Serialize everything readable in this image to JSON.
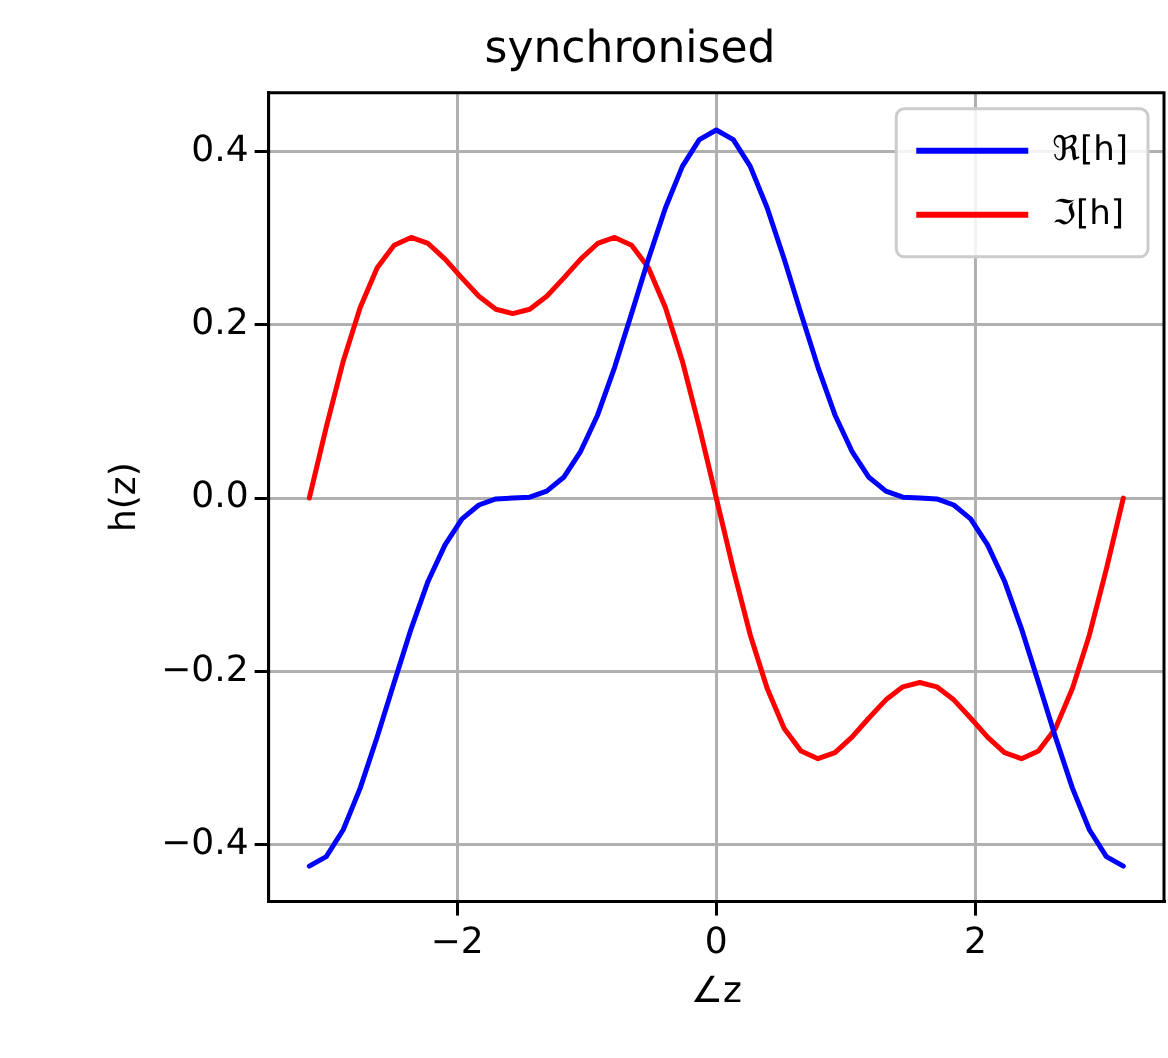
{
  "chart_data": {
    "type": "line",
    "title": "synchronised",
    "xlabel": "∠z",
    "ylabel": "h(z)",
    "x": [
      -3.142,
      -3.011,
      -2.88,
      -2.749,
      -2.618,
      -2.487,
      -2.356,
      -2.225,
      -2.094,
      -1.963,
      -1.833,
      -1.702,
      -1.571,
      -1.44,
      -1.309,
      -1.178,
      -1.047,
      -0.916,
      -0.785,
      -0.654,
      -0.524,
      -0.393,
      -0.262,
      -0.131,
      0,
      0.131,
      0.262,
      0.393,
      0.524,
      0.654,
      0.785,
      0.916,
      1.047,
      1.178,
      1.309,
      1.44,
      1.571,
      1.702,
      1.833,
      1.963,
      2.094,
      2.225,
      2.356,
      2.487,
      2.618,
      2.749,
      2.88,
      3.011,
      3.142
    ],
    "series": [
      {
        "name": "ℜ[h]",
        "color": "#0000ff",
        "values": [
          -0.425,
          -0.414,
          -0.383,
          -0.335,
          -0.276,
          -0.213,
          -0.151,
          -0.096,
          -0.054,
          -0.024,
          -0.008,
          -0.001,
          0,
          0.001,
          0.008,
          0.024,
          0.054,
          0.096,
          0.151,
          0.213,
          0.276,
          0.335,
          0.383,
          0.414,
          0.425,
          0.414,
          0.383,
          0.335,
          0.276,
          0.213,
          0.151,
          0.096,
          0.054,
          0.024,
          0.008,
          0.001,
          0,
          -0.001,
          -0.008,
          -0.024,
          -0.054,
          -0.096,
          -0.151,
          -0.213,
          -0.276,
          -0.335,
          -0.383,
          -0.414,
          -0.425
        ]
      },
      {
        "name": "ℑ[h]",
        "color": "#ff0000",
        "values": [
          0,
          0.082,
          0.158,
          0.22,
          0.266,
          0.292,
          0.301,
          0.294,
          0.276,
          0.254,
          0.233,
          0.218,
          0.213,
          0.218,
          0.233,
          0.254,
          0.276,
          0.294,
          0.301,
          0.292,
          0.266,
          0.22,
          0.158,
          0.082,
          0,
          -0.082,
          -0.158,
          -0.22,
          -0.266,
          -0.292,
          -0.301,
          -0.294,
          -0.276,
          -0.254,
          -0.233,
          -0.218,
          -0.213,
          -0.218,
          -0.233,
          -0.254,
          -0.276,
          -0.294,
          -0.301,
          -0.292,
          -0.266,
          -0.22,
          -0.158,
          -0.082,
          0
        ]
      }
    ],
    "xlim": [
      -3.456,
      3.456
    ],
    "ylim": [
      -0.466,
      0.468
    ],
    "xticks": [
      {
        "value": -2,
        "label": "−2"
      },
      0,
      2
    ],
    "yticks": [
      {
        "value": -0.4,
        "label": "−0.4"
      },
      {
        "value": -0.2,
        "label": "−0.2"
      },
      {
        "value": 0,
        "label": "0.0"
      },
      {
        "value": 0.2,
        "label": "0.2"
      },
      {
        "value": 0.4,
        "label": "0.4"
      }
    ],
    "grid": true,
    "legend": "top right",
    "marker": "none",
    "line_style": "solid"
  }
}
